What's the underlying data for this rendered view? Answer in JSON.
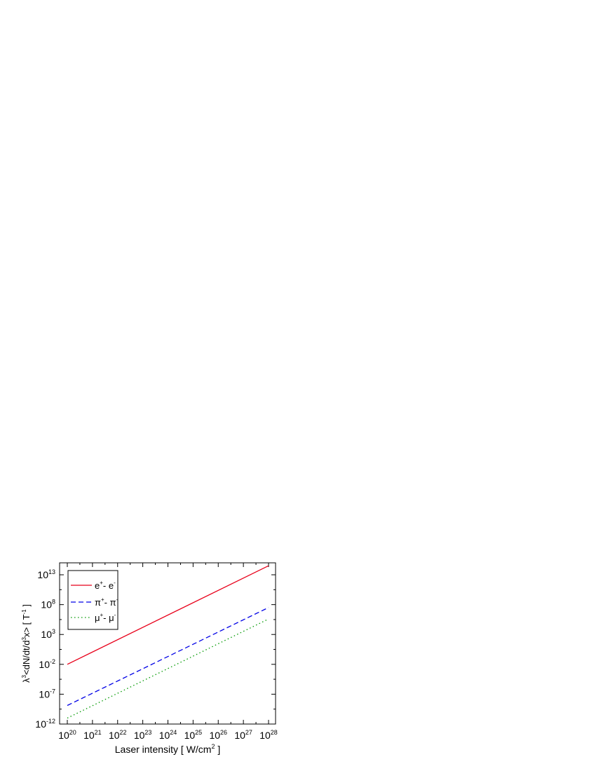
{
  "chart_data": {
    "type": "line",
    "title": "",
    "xlabel": "Laser intensity [ W/cm",
    "xlabel_sup": "2",
    "xlabel_end": " ]",
    "ylabel_lambda": "λ",
    "ylabel_sup1": "3",
    "ylabel_mid": "<dN/dt/d",
    "ylabel_sup2": "3",
    "ylabel_end": "x> [ T",
    "ylabel_sup3": "-1",
    "ylabel_close": " ]",
    "x_scale": "log",
    "y_scale": "log",
    "xlim": [
      1e+20,
      1e+28
    ],
    "ylim": [
      1e-12,
      1000000000000000.0
    ],
    "grid": false,
    "legend_position": "top-left",
    "x_ticks": [
      {
        "base": "10",
        "exp": "20",
        "value": 1e+20
      },
      {
        "base": "10",
        "exp": "21",
        "value": 1e+21
      },
      {
        "base": "10",
        "exp": "22",
        "value": 1e+22
      },
      {
        "base": "10",
        "exp": "23",
        "value": 1e+23
      },
      {
        "base": "10",
        "exp": "24",
        "value": 1e+24
      },
      {
        "base": "10",
        "exp": "25",
        "value": 1e+25
      },
      {
        "base": "10",
        "exp": "26",
        "value": 1e+26
      },
      {
        "base": "10",
        "exp": "27",
        "value": 1e+27
      },
      {
        "base": "10",
        "exp": "28",
        "value": 1e+28
      }
    ],
    "y_ticks": [
      {
        "base": "10",
        "exp": "-12",
        "value": 1e-12
      },
      {
        "base": "10",
        "exp": "-7",
        "value": 1e-07
      },
      {
        "base": "10",
        "exp": "-2",
        "value": 0.01
      },
      {
        "base": "10",
        "exp": "3",
        "value": 1000.0
      },
      {
        "base": "10",
        "exp": "8",
        "value": 100000000.0
      },
      {
        "base": "10",
        "exp": "13",
        "value": 10000000000000.0
      }
    ],
    "series": [
      {
        "name": "e⁺- e⁻",
        "label_base1": "e",
        "label_sup1": "+",
        "label_mid": "- e",
        "label_sup2": "-",
        "color": "#e8001a",
        "dash": "solid",
        "x": [
          1e+20,
          1e+28
        ],
        "y": [
          0.01,
          320000000000000.0
        ]
      },
      {
        "name": "π⁺- π⁻",
        "label_base1": "π",
        "label_sup1": "+",
        "label_mid": "- π",
        "label_sup2": "-",
        "color": "#0000e6",
        "dash": "dashed",
        "x": [
          1e+20,
          1e+28
        ],
        "y": [
          1.3e-09,
          32000000.0
        ]
      },
      {
        "name": "μ⁺- μ⁻",
        "label_base1": "μ",
        "label_sup1": "+",
        "label_mid": "- μ",
        "label_sup2": "-",
        "color": "#009900",
        "dash": "dotted",
        "x": [
          1e+20,
          1e+28
        ],
        "y": [
          1e-11,
          400000.0
        ]
      }
    ]
  }
}
